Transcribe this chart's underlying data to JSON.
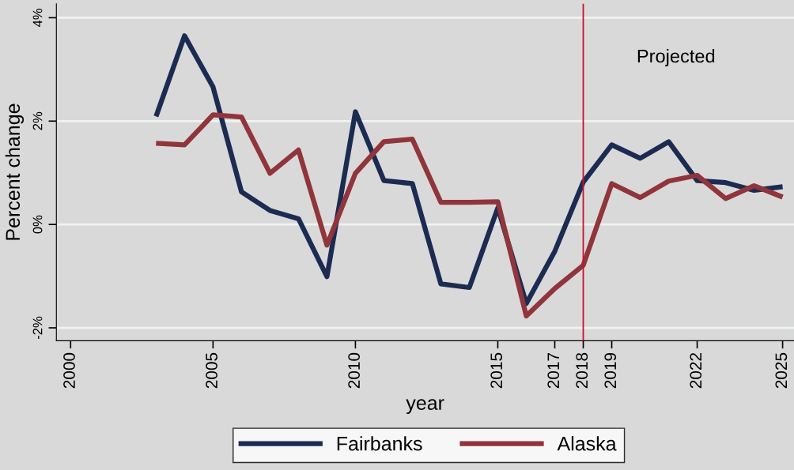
{
  "chart_data": {
    "type": "line",
    "xlabel": "year",
    "ylabel": "Percent change",
    "x": [
      2003,
      2004,
      2005,
      2006,
      2007,
      2008,
      2009,
      2010,
      2011,
      2012,
      2013,
      2014,
      2015,
      2016,
      2017,
      2018,
      2019,
      2020,
      2021,
      2022,
      2023,
      2024,
      2025
    ],
    "series": [
      {
        "name": "Fairbanks",
        "color": "#1c2b52",
        "values": [
          2.09,
          3.65,
          2.66,
          0.63,
          0.27,
          0.11,
          -1.01,
          2.18,
          0.85,
          0.79,
          -1.15,
          -1.22,
          0.32,
          -1.53,
          -0.52,
          0.82,
          1.54,
          1.28,
          1.6,
          0.85,
          0.81,
          0.66,
          0.73
        ]
      },
      {
        "name": "Alaska",
        "color": "#90353b",
        "values": [
          1.57,
          1.54,
          2.12,
          2.08,
          0.99,
          1.44,
          -0.4,
          0.99,
          1.6,
          1.65,
          0.43,
          0.43,
          0.44,
          -1.77,
          -1.24,
          -0.79,
          0.79,
          0.52,
          0.84,
          0.95,
          0.5,
          0.75,
          0.53
        ]
      }
    ],
    "xlim": [
      1999.5,
      2025.4
    ],
    "xticks": [
      2000,
      2005,
      2010,
      2015,
      2017,
      2018,
      2019,
      2022,
      2025
    ],
    "ylim": [
      -2.25,
      4.27
    ],
    "yticks": [
      {
        "value": 4,
        "label": "4%"
      },
      {
        "value": 2,
        "label": "2%"
      },
      {
        "value": 0,
        "label": "0%"
      },
      {
        "value": -2,
        "label": "-2%"
      }
    ],
    "ref_lines": [
      {
        "axis": "x",
        "value": 2018,
        "color": "#c8102e"
      }
    ],
    "annotations": [
      "Projected"
    ],
    "grid": "y",
    "legend": "bottom",
    "marker": "none",
    "line_style": "solid"
  }
}
